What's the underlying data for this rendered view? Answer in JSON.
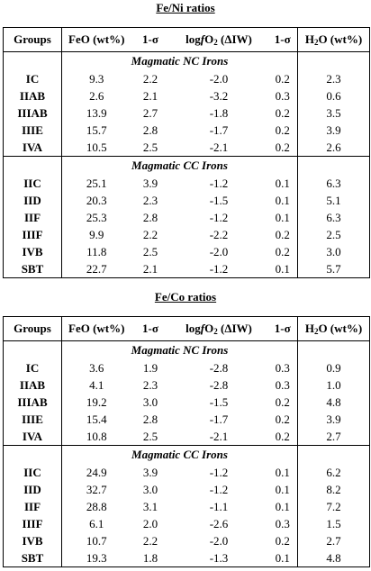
{
  "tables": [
    {
      "title": "Fe/Ni ratios",
      "header": [
        [
          "Groups"
        ],
        [
          "FeO (wt%)"
        ],
        [
          "1-σ"
        ],
        [
          "log",
          "f",
          "O",
          "2",
          " (ΔIW)"
        ],
        [
          "1-σ"
        ],
        [
          "H",
          "2",
          "O (wt%)"
        ]
      ],
      "sections": [
        {
          "label": "Magmatic NC Irons",
          "rows": [
            [
              "IC",
              "9.3",
              "2.2",
              "-2.0",
              "0.2",
              "2.3"
            ],
            [
              "IIAB",
              "2.6",
              "2.1",
              "-3.2",
              "0.3",
              "0.6"
            ],
            [
              "IIIAB",
              "13.9",
              "2.7",
              "-1.8",
              "0.2",
              "3.5"
            ],
            [
              "IIIE",
              "15.7",
              "2.8",
              "-1.7",
              "0.2",
              "3.9"
            ],
            [
              "IVA",
              "10.5",
              "2.5",
              "-2.1",
              "0.2",
              "2.6"
            ]
          ]
        },
        {
          "label": "Magmatic CC Irons",
          "rows": [
            [
              "IIC",
              "25.1",
              "3.9",
              "-1.2",
              "0.1",
              "6.3"
            ],
            [
              "IID",
              "20.3",
              "2.3",
              "-1.5",
              "0.1",
              "5.1"
            ],
            [
              "IIF",
              "25.3",
              "2.8",
              "-1.2",
              "0.1",
              "6.3"
            ],
            [
              "IIIF",
              "9.9",
              "2.2",
              "-2.2",
              "0.2",
              "2.5"
            ],
            [
              "IVB",
              "11.8",
              "2.5",
              "-2.0",
              "0.2",
              "3.0"
            ],
            [
              "SBT",
              "22.7",
              "2.1",
              "-1.2",
              "0.1",
              "5.7"
            ]
          ]
        }
      ]
    },
    {
      "title": "Fe/Co ratios",
      "header": [
        [
          "Groups"
        ],
        [
          "FeO (wt%)"
        ],
        [
          "1-σ"
        ],
        [
          "log",
          "f",
          "O",
          "2",
          " (ΔIW)"
        ],
        [
          "1-σ"
        ],
        [
          "H",
          "2",
          "O (wt%)"
        ]
      ],
      "sections": [
        {
          "label": "Magmatic NC Irons",
          "rows": [
            [
              "IC",
              "3.6",
              "1.9",
              "-2.8",
              "0.3",
              "0.9"
            ],
            [
              "IIAB",
              "4.1",
              "2.3",
              "-2.8",
              "0.3",
              "1.0"
            ],
            [
              "IIIAB",
              "19.2",
              "3.0",
              "-1.5",
              "0.2",
              "4.8"
            ],
            [
              "IIIE",
              "15.4",
              "2.8",
              "-1.7",
              "0.2",
              "3.9"
            ],
            [
              "IVA",
              "10.8",
              "2.5",
              "-2.1",
              "0.2",
              "2.7"
            ]
          ]
        },
        {
          "label": "Magmatic CC Irons",
          "rows": [
            [
              "IIC",
              "24.9",
              "3.9",
              "-1.2",
              "0.1",
              "6.2"
            ],
            [
              "IID",
              "32.7",
              "3.0",
              "-1.2",
              "0.1",
              "8.2"
            ],
            [
              "IIF",
              "28.8",
              "3.1",
              "-1.1",
              "0.1",
              "7.2"
            ],
            [
              "IIIF",
              "6.1",
              "2.0",
              "-2.6",
              "0.3",
              "1.5"
            ],
            [
              "IVB",
              "10.7",
              "2.2",
              "-2.0",
              "0.2",
              "2.7"
            ],
            [
              "SBT",
              "19.3",
              "1.8",
              "-1.3",
              "0.1",
              "4.8"
            ]
          ]
        }
      ]
    }
  ]
}
